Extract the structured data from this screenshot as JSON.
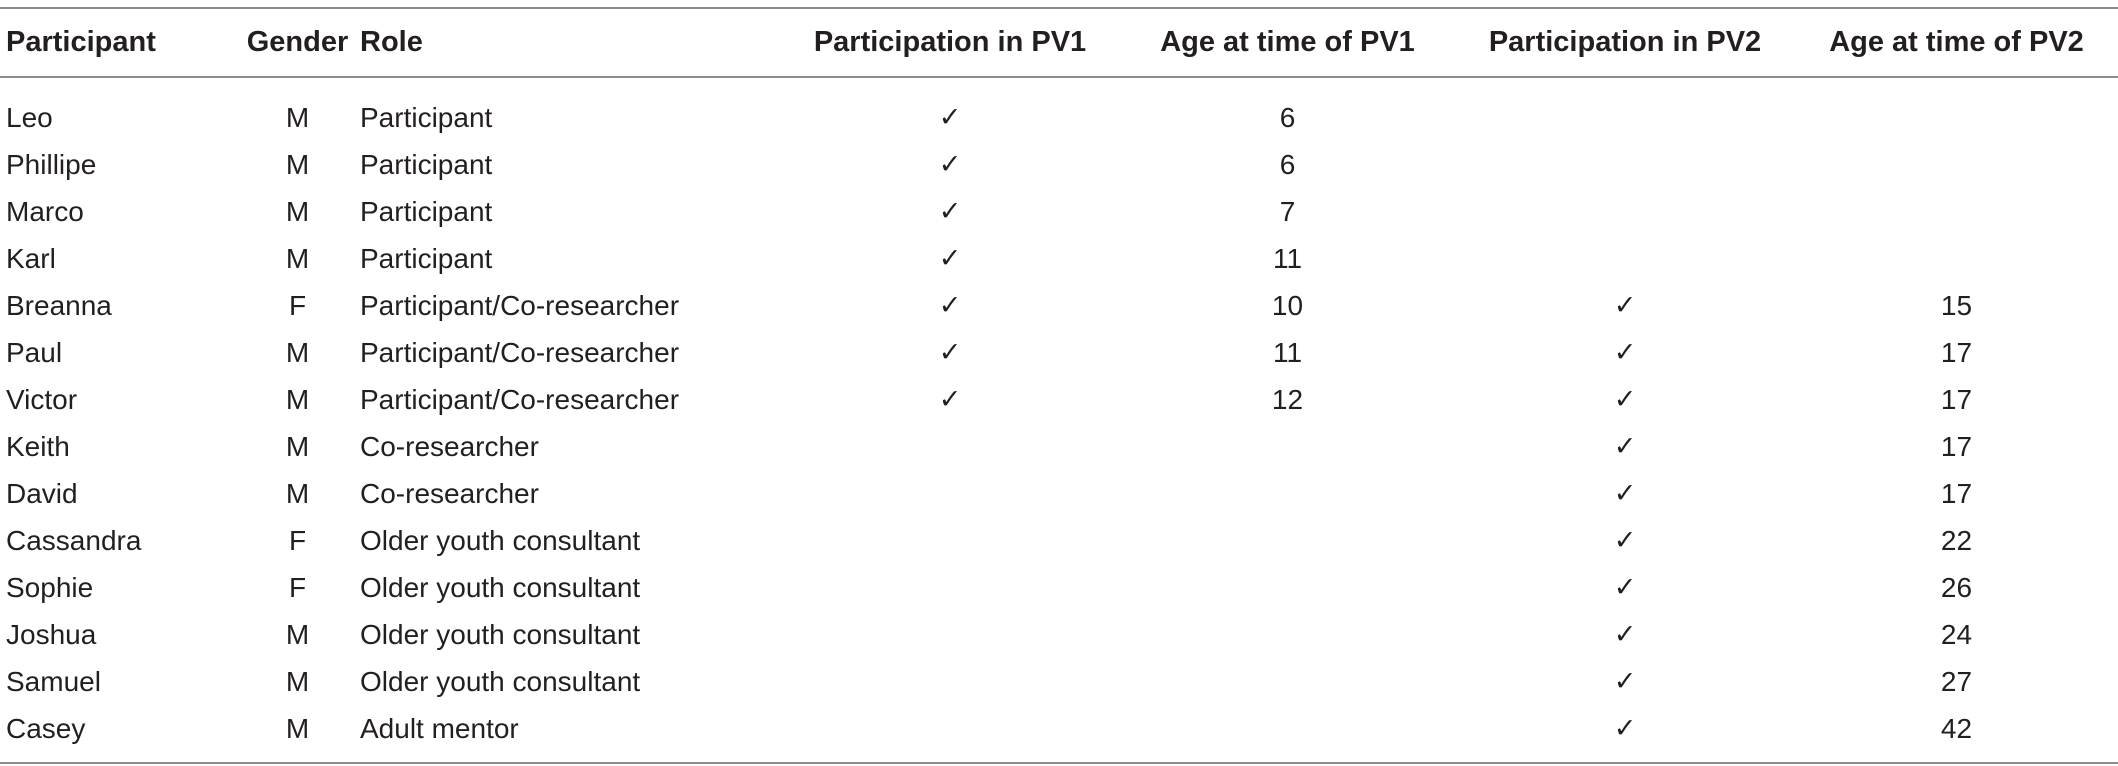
{
  "table": {
    "headers": {
      "participant": "Participant",
      "gender": "Gender",
      "role": "Role",
      "pv1": "Participation in PV1",
      "age_pv1": "Age at time of PV1",
      "pv2": "Participation in PV2",
      "age_pv2": "Age at time of PV2"
    },
    "check_mark": "✓",
    "rows": [
      {
        "participant": "Leo",
        "gender": "M",
        "role": "Participant",
        "pv1": "✓",
        "age_pv1": "6",
        "pv2": "",
        "age_pv2": ""
      },
      {
        "participant": "Phillipe",
        "gender": "M",
        "role": "Participant",
        "pv1": "✓",
        "age_pv1": "6",
        "pv2": "",
        "age_pv2": ""
      },
      {
        "participant": "Marco",
        "gender": "M",
        "role": "Participant",
        "pv1": "✓",
        "age_pv1": "7",
        "pv2": "",
        "age_pv2": ""
      },
      {
        "participant": "Karl",
        "gender": "M",
        "role": "Participant",
        "pv1": "✓",
        "age_pv1": "11",
        "pv2": "",
        "age_pv2": ""
      },
      {
        "participant": "Breanna",
        "gender": "F",
        "role": "Participant/Co-researcher",
        "pv1": "✓",
        "age_pv1": "10",
        "pv2": "✓",
        "age_pv2": "15"
      },
      {
        "participant": "Paul",
        "gender": "M",
        "role": "Participant/Co-researcher",
        "pv1": "✓",
        "age_pv1": "11",
        "pv2": "✓",
        "age_pv2": "17"
      },
      {
        "participant": "Victor",
        "gender": "M",
        "role": "Participant/Co-researcher",
        "pv1": "✓",
        "age_pv1": "12",
        "pv2": "✓",
        "age_pv2": "17"
      },
      {
        "participant": "Keith",
        "gender": "M",
        "role": "Co-researcher",
        "pv1": "",
        "age_pv1": "",
        "pv2": "✓",
        "age_pv2": "17"
      },
      {
        "participant": "David",
        "gender": "M",
        "role": "Co-researcher",
        "pv1": "",
        "age_pv1": "",
        "pv2": "✓",
        "age_pv2": "17"
      },
      {
        "participant": "Cassandra",
        "gender": "F",
        "role": "Older youth consultant",
        "pv1": "",
        "age_pv1": "",
        "pv2": "✓",
        "age_pv2": "22"
      },
      {
        "participant": "Sophie",
        "gender": "F",
        "role": "Older youth consultant",
        "pv1": "",
        "age_pv1": "",
        "pv2": "✓",
        "age_pv2": "26"
      },
      {
        "participant": "Joshua",
        "gender": "M",
        "role": "Older youth consultant",
        "pv1": "",
        "age_pv1": "",
        "pv2": "✓",
        "age_pv2": "24"
      },
      {
        "participant": "Samuel",
        "gender": "M",
        "role": "Older youth consultant",
        "pv1": "",
        "age_pv1": "",
        "pv2": "✓",
        "age_pv2": "27"
      },
      {
        "participant": "Casey",
        "gender": "M",
        "role": "Adult mentor",
        "pv1": "",
        "age_pv1": "",
        "pv2": "✓",
        "age_pv2": "42"
      }
    ]
  }
}
